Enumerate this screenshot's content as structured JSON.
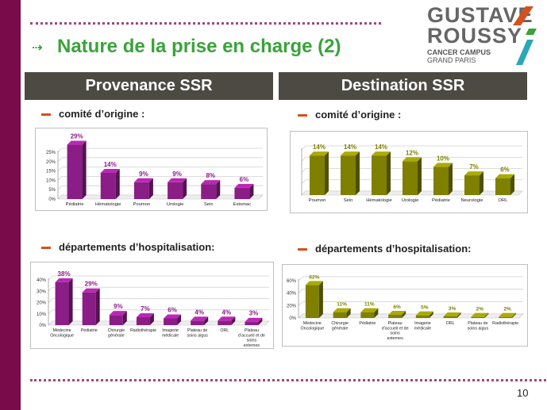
{
  "slide": {
    "title": "Nature de la prise en charge (2)",
    "page_number": "10"
  },
  "logo": {
    "line1": "GUSTAVE",
    "line2": "ROUSSY",
    "sub1": "CANCER CAMPUS",
    "sub2": "GRAND PARIS"
  },
  "headers": {
    "left": "Provenance SSR",
    "right": "Destination SSR"
  },
  "bullets": {
    "left_top": "comité d’origine :",
    "right_top": "comité d’origine :",
    "left_bottom": "départements d’hospitalisation:",
    "right_bottom": "départements d’hospitalisation:"
  },
  "colors": {
    "purple": "#8b1d86",
    "olive": "#7f7f00",
    "accent_green": "#3aa33a",
    "band": "#7a0b4b"
  },
  "chart_data": [
    {
      "id": "prov-comite",
      "type": "bar",
      "color": "#8b1d86",
      "categories": [
        "Pédiatrie",
        "Hématologie",
        "Poumon",
        "Urologie",
        "Sein",
        "Estomac"
      ],
      "values": [
        29,
        14,
        9,
        9,
        8,
        6
      ],
      "value_labels": [
        "29%",
        "14%",
        "9%",
        "9%",
        "8%",
        "6%"
      ],
      "yticks": [
        "0%",
        "5%",
        "10%",
        "15%",
        "20%",
        "25%"
      ],
      "ylim": [
        0,
        25
      ],
      "grid": true
    },
    {
      "id": "dest-comite",
      "type": "bar",
      "color": "#7f7f00",
      "categories": [
        "Poumon",
        "Sein",
        "Hématologie",
        "Urologie",
        "Pédiatrie",
        "Neurologie",
        "ORL"
      ],
      "values": [
        14,
        14,
        14,
        12,
        10,
        7,
        6
      ],
      "value_labels": [
        "14%",
        "14%",
        "14%",
        "12%",
        "10%",
        "7%",
        "6%"
      ],
      "yticks": [],
      "ylim": [
        0,
        16
      ],
      "grid": true
    },
    {
      "id": "prov-dept",
      "type": "bar",
      "color": "#8b1d86",
      "categories": [
        [
          "Médecine",
          "Oncologique"
        ],
        [
          "Pédiatrie"
        ],
        [
          "Chirurgie",
          "générale"
        ],
        [
          "Radiothérapie"
        ],
        [
          "Imagerie",
          "médicale"
        ],
        [
          "Plateau de",
          "soins aigus"
        ],
        [
          "ORL"
        ],
        [
          "Plateau",
          "d’accueil et de",
          "soins",
          "externes"
        ]
      ],
      "values": [
        38,
        29,
        9,
        7,
        6,
        4,
        4,
        3
      ],
      "value_labels": [
        "38%",
        "29%",
        "9%",
        "7%",
        "6%",
        "4%",
        "4%",
        "3%"
      ],
      "yticks": [
        "0%",
        "10%",
        "20%",
        "30%",
        "40%"
      ],
      "ylim": [
        0,
        40
      ],
      "grid": true
    },
    {
      "id": "dest-dept",
      "type": "bar",
      "color": "#7f7f00",
      "categories": [
        [
          "Médecine",
          "Oncologique"
        ],
        [
          "Chirurgie",
          "générale"
        ],
        [
          "Pédiatrie"
        ],
        [
          "Plateau",
          "d’accueil et de",
          "soins",
          "externes"
        ],
        [
          "Imagerie",
          "médicale"
        ],
        [
          "ORL"
        ],
        [
          "Plateau de",
          "soins aigus"
        ],
        [
          "Radiothérapie"
        ]
      ],
      "values": [
        62,
        11,
        11,
        6,
        5,
        3,
        2,
        2
      ],
      "value_labels": [
        "62%",
        "11%",
        "11%",
        "6%",
        "5%",
        "3%",
        "2%",
        "2%"
      ],
      "yticks": [
        "0%",
        "20%",
        "40%",
        "60%"
      ],
      "ylim": [
        0,
        70
      ],
      "grid": true
    }
  ]
}
